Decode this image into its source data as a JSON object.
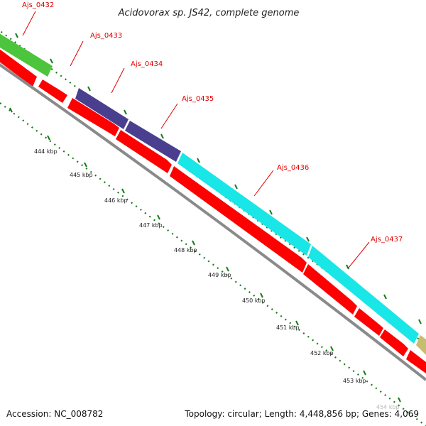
{
  "title": "Acidovorax sp. JS42, complete genome",
  "footer": {
    "accession": "Accession: NC_008782",
    "summary": "Topology: circular; Length: 4,448,856 bp; Genes: 4,069"
  },
  "genes": [
    {
      "name": "Ajs_0432",
      "color": "#4cc43c"
    },
    {
      "name": "Ajs_0433",
      "color": "#ff0000"
    },
    {
      "name": "Ajs_0434",
      "color": "#4a3f8f"
    },
    {
      "name": "Ajs_0435",
      "color": "#4a3f8f"
    },
    {
      "name": "Ajs_0436",
      "color": "#19e6e6"
    },
    {
      "name": "Ajs_0437",
      "color": "#19e6e6"
    }
  ],
  "scale_labels": [
    "444 kbp",
    "445 kbp",
    "446 kbp",
    "447 kbp",
    "448 kbp",
    "449 kbp",
    "450 kbp",
    "451 kbp",
    "452 kbp",
    "453 kbp",
    "454 kbp"
  ],
  "colors": {
    "cds": "#ff0000",
    "backbone": "#888888",
    "tick": "#1a7a1a",
    "gene_label": "#e00000",
    "olive": "#c8bc70"
  }
}
